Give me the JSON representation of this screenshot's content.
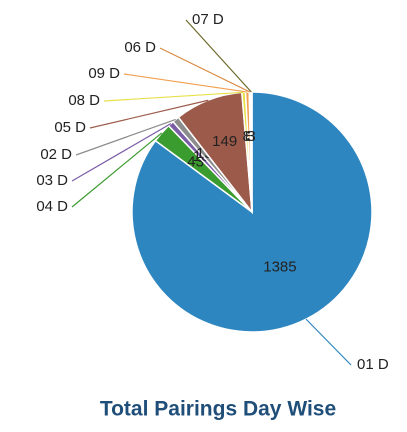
{
  "chart_data": {
    "type": "pie",
    "title": "Total Pairings Day Wise",
    "categories": [
      "01 D",
      "04 D",
      "03 D",
      "02 D",
      "05 D",
      "08 D",
      "09 D",
      "06 D",
      "07 D"
    ],
    "values": [
      1385,
      43,
      13,
      15,
      149,
      8,
      8,
      3,
      3
    ],
    "colors": [
      "#2e86c1",
      "#3a9b2e",
      "#7b5ea7",
      "#8c8c8c",
      "#9c5a4a",
      "#e8e04a",
      "#f0a050",
      "#d98a40",
      "#6b6a2a"
    ]
  }
}
